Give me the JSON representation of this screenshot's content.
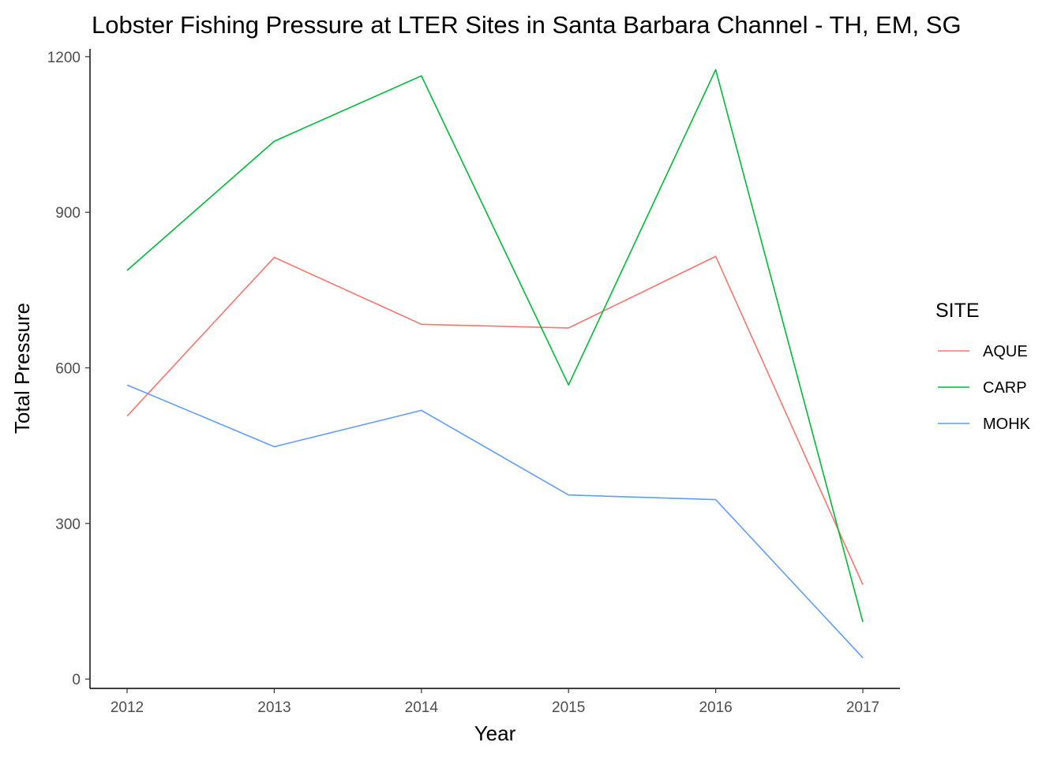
{
  "chart_data": {
    "type": "line",
    "title": "Lobster Fishing Pressure at LTER Sites in Santa Barbara Channel - TH, EM, SG",
    "xlabel": "Year",
    "ylabel": "Total Pressure",
    "x": [
      2012,
      2013,
      2014,
      2015,
      2016,
      2017
    ],
    "ylim": [
      -18,
      1215
    ],
    "yticks": [
      0,
      300,
      600,
      900,
      1200
    ],
    "grid": false,
    "legend": {
      "title": "SITE",
      "position": "right"
    },
    "series": [
      {
        "name": "AQUE",
        "color": "#F8766D",
        "values": [
          507,
          813,
          684,
          677,
          815,
          182
        ]
      },
      {
        "name": "CARP",
        "color": "#00BA38",
        "values": [
          788,
          1037,
          1163,
          567,
          1175,
          110
        ]
      },
      {
        "name": "MOHK",
        "color": "#619CFF",
        "values": [
          567,
          448,
          518,
          355,
          346,
          41
        ]
      }
    ]
  }
}
